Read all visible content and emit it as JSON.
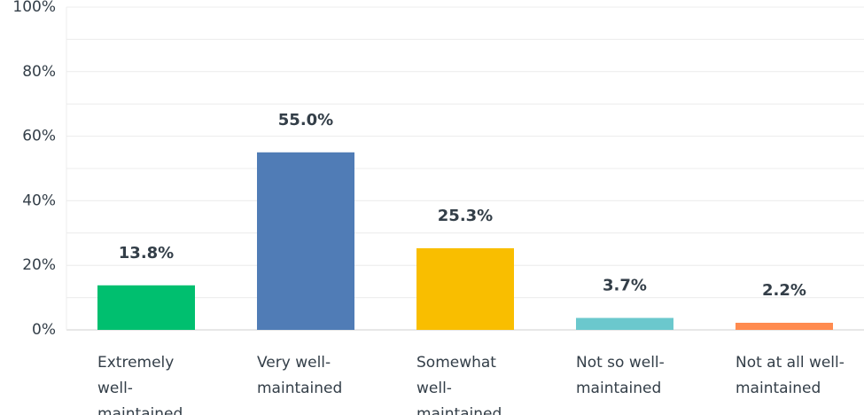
{
  "chart_data": {
    "type": "bar",
    "categories": [
      "Extremely well-maintained",
      "Very well-maintained",
      "Somewhat well-maintained",
      "Not so well-maintained",
      "Not at all well-maintained"
    ],
    "values": [
      13.8,
      55.0,
      25.3,
      3.7,
      2.2
    ],
    "value_labels": [
      "13.8%",
      "55.0%",
      "25.3%",
      "3.7%",
      "2.2%"
    ],
    "colors": [
      "#00bf6f",
      "#507cb6",
      "#f9be00",
      "#6bc8cd",
      "#ff8b4f"
    ],
    "ylim": [
      0,
      100
    ],
    "yticks": [
      {
        "value": 0,
        "label": "0%"
      },
      {
        "value": 20,
        "label": "20%"
      },
      {
        "value": 40,
        "label": "40%"
      },
      {
        "value": 60,
        "label": "60%"
      },
      {
        "value": 80,
        "label": "80%"
      },
      {
        "value": 100,
        "label": "100%"
      }
    ],
    "minor_yticks": [
      10,
      30,
      50,
      70,
      90
    ],
    "grid": true
  }
}
